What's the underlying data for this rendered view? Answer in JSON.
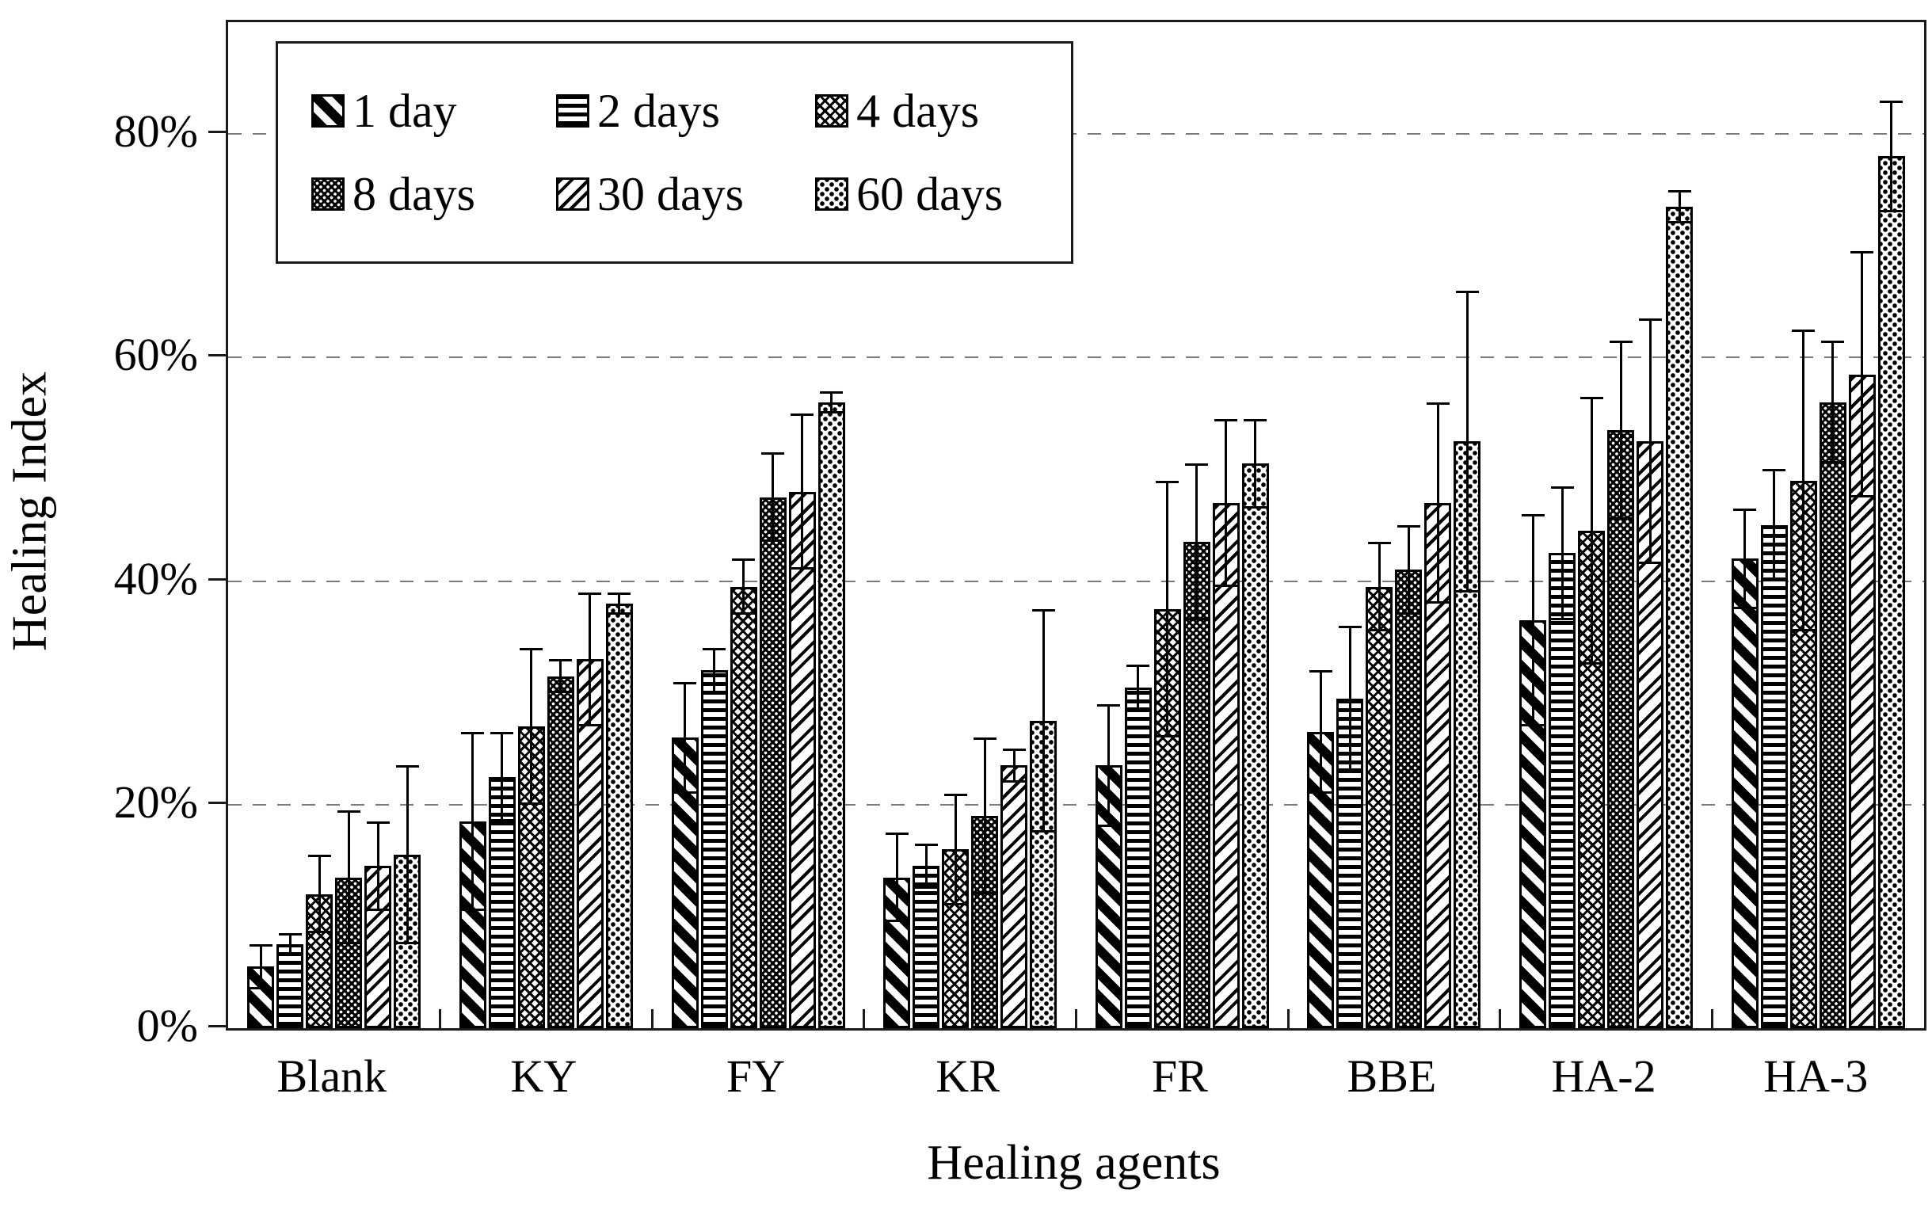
{
  "chart_data": {
    "type": "bar",
    "title": "",
    "xlabel": "Healing agents",
    "ylabel": "Healing Index",
    "categories": [
      "Blank",
      "KY",
      "FY",
      "KR",
      "FR",
      "BBE",
      "HA-2",
      "HA-3"
    ],
    "y_axis": {
      "tick_labels": [
        "0%",
        "20%",
        "40%",
        "60%",
        "80%"
      ],
      "tick_values": [
        0,
        20,
        40,
        60,
        80
      ],
      "max": 90,
      "grid": "dashed horizontal lines at 20/40/60/80"
    },
    "legend_position": "top-left inside plot",
    "error_bars": "symmetric, values in percent",
    "series": [
      {
        "name": "1 day",
        "pattern": "diag1",
        "values": [
          5.5,
          18.5,
          26,
          13.5,
          23.5,
          26.5,
          36.5,
          42
        ],
        "errors": [
          2,
          8,
          5,
          4,
          5.5,
          5.5,
          9.5,
          4.5
        ]
      },
      {
        "name": "2 days",
        "pattern": "hstripe",
        "values": [
          7.5,
          22.5,
          32,
          14.5,
          30.5,
          29.5,
          42.5,
          45
        ],
        "errors": [
          1,
          4,
          2,
          2,
          2,
          6.5,
          6,
          5
        ]
      },
      {
        "name": "4 days",
        "pattern": "checker",
        "values": [
          12,
          27,
          39.5,
          16,
          37.5,
          39.5,
          44.5,
          49
        ],
        "errors": [
          3.5,
          7,
          2.5,
          5,
          11.5,
          4,
          12,
          13.5
        ]
      },
      {
        "name": "8 days",
        "pattern": "blackdot",
        "values": [
          13.5,
          31.5,
          47.5,
          19,
          43.5,
          41,
          53.5,
          56
        ],
        "errors": [
          6,
          1.5,
          4,
          7,
          7,
          4,
          8,
          5.5
        ]
      },
      {
        "name": "30 days",
        "pattern": "diag30",
        "values": [
          14.5,
          33,
          48,
          23.5,
          47,
          47,
          52.5,
          58.5
        ],
        "errors": [
          4,
          6,
          7,
          1.5,
          7.5,
          9,
          11,
          11
        ]
      },
      {
        "name": "60 days",
        "pattern": "dot60",
        "values": [
          15.5,
          38,
          56,
          27.5,
          50.5,
          52.5,
          73.5,
          78
        ],
        "errors": [
          8,
          1,
          1,
          10,
          4,
          13.5,
          1.5,
          5
        ]
      }
    ]
  }
}
